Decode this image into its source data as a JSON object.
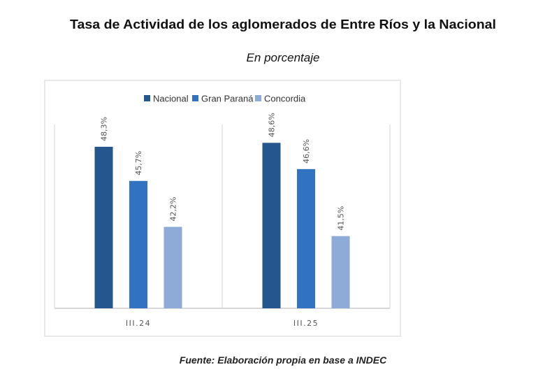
{
  "chart_data": {
    "type": "bar",
    "title": "Tasa de Actividad de los aglomerados de Entre Ríos y la Nacional",
    "subtitle": "En porcentaje",
    "source": "Fuente: Elaboración propia en base a INDEC",
    "categories": [
      "III.24",
      "III.25"
    ],
    "series": [
      {
        "name": "Nacional",
        "color": "#25568e",
        "values": [
          48.3,
          48.6
        ],
        "labels": [
          "48,3%",
          "48,6%"
        ]
      },
      {
        "name": "Gran Paraná",
        "color": "#3173c1",
        "values": [
          45.7,
          46.6
        ],
        "labels": [
          "45,7%",
          "46,6%"
        ]
      },
      {
        "name": "Concordia",
        "color": "#8eaad6",
        "values": [
          42.2,
          41.5
        ],
        "labels": [
          "42,2%",
          "41,5%"
        ]
      }
    ],
    "xlabel": "",
    "ylabel": "",
    "ylim": [
      36,
      50
    ],
    "grid": false,
    "legend_position": "top-center"
  }
}
